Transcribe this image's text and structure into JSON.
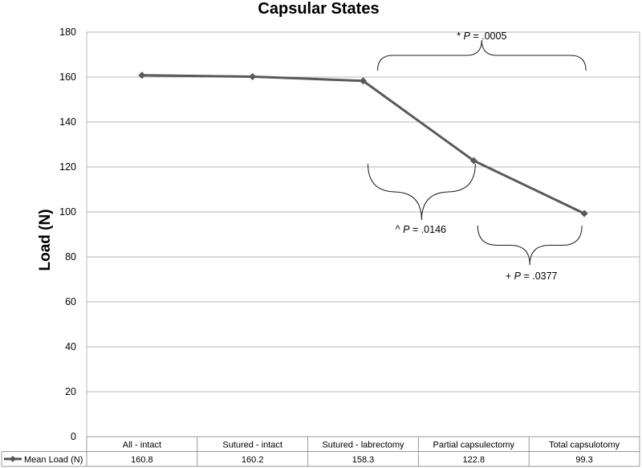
{
  "chart_data": {
    "type": "line",
    "title": "Capsular States",
    "xlabel": "",
    "ylabel": "Load (N)",
    "ylim": [
      0,
      180
    ],
    "yticks": [
      0,
      20,
      40,
      60,
      80,
      100,
      120,
      140,
      160,
      180
    ],
    "categories": [
      "All - intact",
      "Sutured - intact",
      "Sutured - labrectomy",
      "Partial capsulectomy",
      "Total capsulotomy"
    ],
    "series": [
      {
        "name": "Mean Load (N)",
        "color": "#595959",
        "marker": "diamond",
        "values": [
          160.8,
          160.2,
          158.3,
          122.8,
          99.3
        ],
        "table_values": [
          "160.8",
          "160.2",
          "158.3",
          "122.8",
          "99.3"
        ]
      }
    ],
    "grid": true,
    "legend": "data-table-row",
    "annotations": [
      {
        "prefix": "* ",
        "p": "P",
        "rest": " = .0005",
        "from": 2,
        "to": 4
      },
      {
        "prefix": "^ ",
        "p": "P",
        "rest": " = .0146",
        "from": 2,
        "to": 3
      },
      {
        "prefix": "+ ",
        "p": "P",
        "rest": " = .0377",
        "from": 3,
        "to": 4
      }
    ]
  }
}
